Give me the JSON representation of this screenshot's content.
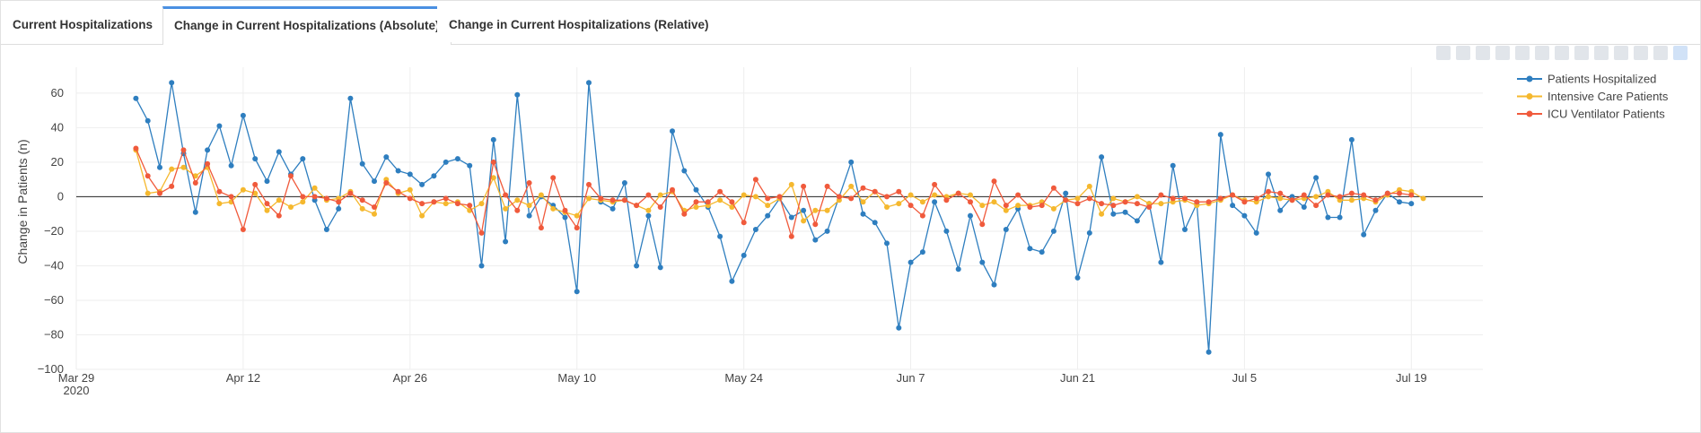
{
  "tabs": [
    {
      "label": "Current Hospitalizations",
      "active": false
    },
    {
      "label": "Change in Current Hospitalizations (Absolute)",
      "active": true
    },
    {
      "label": "Change in Current Hospitalizations (Relative)",
      "active": false
    }
  ],
  "chart_data": {
    "type": "line",
    "ylabel": "Change in Patients (n)",
    "xlabel": "",
    "ylim": [
      -100,
      75
    ],
    "xlim": [
      "2020-03-29",
      "2020-07-25"
    ],
    "yticks": [
      -100,
      -80,
      -60,
      -40,
      -20,
      0,
      20,
      40,
      60
    ],
    "xticks": [
      {
        "date": "2020-03-29",
        "label": "Mar 29",
        "sublabel": "2020"
      },
      {
        "date": "2020-04-12",
        "label": "Apr 12"
      },
      {
        "date": "2020-04-26",
        "label": "Apr 26"
      },
      {
        "date": "2020-05-10",
        "label": "May 10"
      },
      {
        "date": "2020-05-24",
        "label": "May 24"
      },
      {
        "date": "2020-06-07",
        "label": "Jun 7"
      },
      {
        "date": "2020-06-21",
        "label": "Jun 21"
      },
      {
        "date": "2020-07-05",
        "label": "Jul 5"
      },
      {
        "date": "2020-07-19",
        "label": "Jul 19"
      }
    ],
    "grid": true,
    "legend_position": "top-right",
    "start_date": "2020-04-03",
    "series": [
      {
        "name": "Patients Hospitalized",
        "color": "#2e7ebf",
        "values": [
          57,
          44,
          17,
          66,
          25,
          -9,
          27,
          41,
          18,
          47,
          22,
          9,
          26,
          13,
          22,
          -2,
          -19,
          -7,
          57,
          19,
          9,
          23,
          15,
          13,
          7,
          12,
          20,
          22,
          18,
          -40,
          33,
          -26,
          59,
          -11,
          0,
          -5,
          -12,
          -55,
          66,
          -3,
          -7,
          8,
          -40,
          -11,
          -41,
          38,
          15,
          4,
          -6,
          -23,
          -49,
          -34,
          -19,
          -11,
          -1,
          -12,
          -8,
          -25,
          -20,
          0,
          20,
          -10,
          -15,
          -27,
          -76,
          -38,
          -32,
          -3,
          -20,
          -42,
          -11,
          -38,
          -51,
          -19,
          -7,
          -30,
          -32,
          -20,
          2,
          -47,
          -21,
          23,
          -10,
          -9,
          -14,
          -4,
          -38,
          18,
          -19,
          -4,
          -90,
          36,
          -5,
          -11,
          -21,
          13,
          -8,
          0,
          -6,
          11,
          -12,
          -12,
          33,
          -22,
          -8,
          2,
          -3,
          -4
        ]
      },
      {
        "name": "Intensive Care Patients",
        "color": "#f5b82e",
        "values": [
          27,
          2,
          3,
          16,
          17,
          12,
          17,
          -4,
          -3,
          4,
          2,
          -8,
          -2,
          -6,
          -3,
          5,
          -2,
          -1,
          3,
          -7,
          -10,
          10,
          2,
          4,
          -11,
          -3,
          -4,
          -3,
          -8,
          -4,
          11,
          -7,
          -2,
          -5,
          1,
          -7,
          -9,
          -11,
          -1,
          -2,
          -3,
          -2,
          -5,
          -8,
          1,
          3,
          -8,
          -6,
          -5,
          -2,
          -6,
          1,
          0,
          -5,
          -1,
          7,
          -14,
          -8,
          -8,
          -2,
          6,
          -3,
          3,
          -6,
          -4,
          1,
          -3,
          1,
          0,
          2,
          1,
          -5,
          -3,
          -8,
          -5,
          -5,
          -3,
          -7,
          -2,
          -1,
          6,
          -10,
          -1,
          -3,
          0,
          -4,
          -4,
          -3,
          -2,
          -5,
          -4,
          -2,
          1,
          -2,
          -3,
          0,
          -1,
          -2,
          -1,
          0,
          3,
          -2,
          -2,
          -1,
          -3,
          1,
          4,
          3,
          -1
        ]
      },
      {
        "name": "ICU Ventilator Patients",
        "color": "#f05a3c",
        "values": [
          28,
          12,
          2,
          6,
          27,
          8,
          19,
          3,
          0,
          -19,
          7,
          -4,
          -11,
          12,
          0,
          0,
          -1,
          -3,
          2,
          -2,
          -6,
          8,
          3,
          -1,
          -4,
          -3,
          -1,
          -4,
          -5,
          -21,
          20,
          1,
          -8,
          8,
          -18,
          11,
          -8,
          -18,
          7,
          -1,
          -2,
          -2,
          -5,
          1,
          -6,
          4,
          -10,
          -3,
          -3,
          3,
          -3,
          -15,
          10,
          -1,
          0,
          -23,
          6,
          -16,
          6,
          0,
          -1,
          5,
          3,
          0,
          3,
          -5,
          -11,
          7,
          -2,
          2,
          -3,
          -16,
          9,
          -5,
          1,
          -6,
          -5,
          5,
          -2,
          -4,
          -1,
          -4,
          -5,
          -3,
          -4,
          -6,
          1,
          -1,
          -1,
          -3,
          -3,
          -1,
          1,
          -3,
          -1,
          3,
          2,
          -2,
          1,
          -5,
          1,
          0,
          2,
          1,
          -2,
          2,
          2,
          1
        ]
      }
    ]
  }
}
